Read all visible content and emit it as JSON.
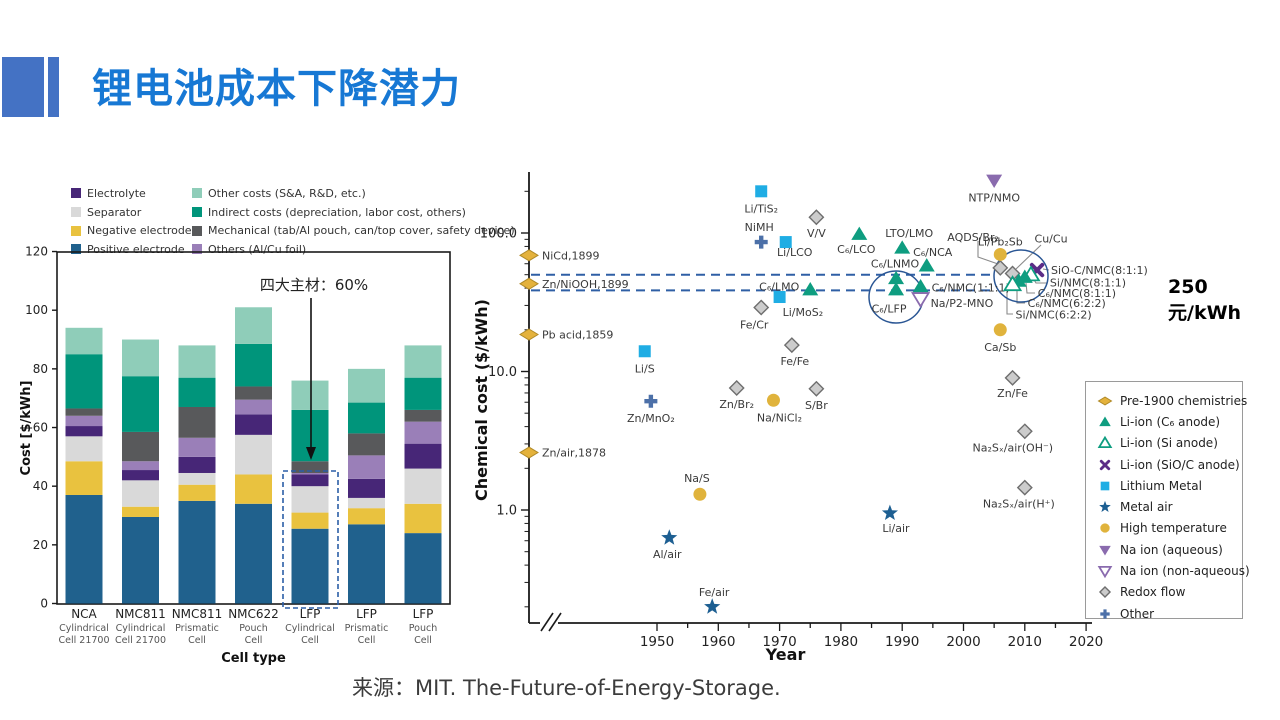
{
  "slide": {
    "title": "锂电池成本下降潜力",
    "source": "来源：MIT. The-Future-of-Energy-Storage.",
    "cost_target_annotation": "250元/kWh",
    "accent_color": "#4472C4",
    "title_color": "#1778D4"
  },
  "chart_data": [
    {
      "type": "bar",
      "stacked": true,
      "title": "",
      "xlabel": "Cell type",
      "ylabel": "Cost [$/kWh]",
      "ylim": [
        0,
        120
      ],
      "yticks": [
        0,
        20,
        40,
        60,
        80,
        100,
        120
      ],
      "categories": [
        {
          "name": "NCA",
          "sub": [
            "Cylindrical",
            "Cell 21700"
          ]
        },
        {
          "name": "NMC811",
          "sub": [
            "Cylindrical",
            "Cell 21700"
          ]
        },
        {
          "name": "NMC811",
          "sub": [
            "Prismatic",
            "Cell"
          ]
        },
        {
          "name": "NMC622",
          "sub": [
            "Pouch",
            "Cell"
          ]
        },
        {
          "name": "LFP",
          "sub": [
            "Cylindrical",
            "Cell"
          ]
        },
        {
          "name": "LFP",
          "sub": [
            "Prismatic",
            "Cell"
          ]
        },
        {
          "name": "LFP",
          "sub": [
            "Pouch",
            "Cell"
          ]
        }
      ],
      "series": [
        {
          "name": "Positive electrode",
          "color": "#20618D",
          "values": [
            37,
            29.5,
            35,
            34,
            25.5,
            27,
            24
          ]
        },
        {
          "name": "Negative electrode",
          "color": "#E9C23F",
          "values": [
            11.5,
            3.5,
            5.5,
            10,
            5.5,
            5.5,
            10
          ]
        },
        {
          "name": "Separator",
          "color": "#D9D9D9",
          "values": [
            8.5,
            9,
            4,
            13.5,
            9,
            3.5,
            12
          ]
        },
        {
          "name": "Electrolyte",
          "color": "#472677",
          "values": [
            3.5,
            3.5,
            5.5,
            7,
            4,
            6.5,
            8.5
          ]
        },
        {
          "name": "Others (Al/Cu foil)",
          "color": "#9A7FB8",
          "values": [
            3.5,
            3,
            6.5,
            5,
            0.5,
            8,
            7.5
          ]
        },
        {
          "name": "Mechanical (tab/Al pouch, can/top cover, safety device)",
          "color": "#58595B",
          "values": [
            2.5,
            10,
            10.5,
            4.5,
            4,
            7.5,
            4
          ]
        },
        {
          "name": "Indirect costs (depreciation, labor cost, others)",
          "color": "#00957B",
          "values": [
            18.5,
            19,
            10,
            14.5,
            17.5,
            10.5,
            11
          ]
        },
        {
          "name": "Other costs (S&A, R&D, etc.)",
          "color": "#8FCDB9",
          "values": [
            9,
            12.5,
            11,
            12.5,
            10,
            11.5,
            11
          ]
        }
      ],
      "legend_left": [
        {
          "label": "Electrolyte",
          "color": "#472677"
        },
        {
          "label": "Separator",
          "color": "#D9D9D9"
        },
        {
          "label": "Negative electrode",
          "color": "#E9C23F"
        },
        {
          "label": "Positive electrode",
          "color": "#20618D"
        }
      ],
      "legend_right": [
        {
          "label": "Other costs (S&A, R&D, etc.)",
          "color": "#8FCDB9"
        },
        {
          "label": "Indirect costs (depreciation, labor cost, others)",
          "color": "#00957B"
        },
        {
          "label": "Mechanical (tab/Al pouch, can/top cover, safety device)",
          "color": "#58595B"
        },
        {
          "label": "Others (Al/Cu foil)",
          "color": "#9A7FB8"
        }
      ],
      "annotation": {
        "text": "四大主材：60%",
        "target_category_index": 4
      }
    },
    {
      "type": "scatter",
      "xlabel": "Year",
      "ylabel": "Chemical cost ($/kWh)",
      "x_scale": "linear",
      "y_scale": "log",
      "xlim": [
        1945,
        2022
      ],
      "xticks": [
        1950,
        1960,
        1970,
        1980,
        1990,
        2000,
        2010,
        2020
      ],
      "yticks": [
        {
          "value": 100,
          "label": "100.0"
        },
        {
          "value": 10,
          "label": "10.0"
        },
        {
          "value": 1,
          "label": "1.0"
        }
      ],
      "dashed_band_costs": [
        50,
        38.5
      ],
      "marker_colors": {
        "pre1900": "#E4B23C",
        "pre1900_stroke": "#B08A28",
        "li_c6": "#0E9D80",
        "li_sioc": "#5B2C87",
        "li_metal": "#1FADE4",
        "metal_air": "#1D5F92",
        "high_temp": "#E0B33C",
        "na_aq": "#8A6BAE",
        "redox_fill": "#CCCCCC",
        "redox_stroke": "#6E6E6E",
        "other": "#4C70A8",
        "annotation_circle": "#2A5694",
        "dashed_line": "#2F5FA5"
      },
      "legend": [
        {
          "label": "Pre-1900 chemistries",
          "type": "pre1900"
        },
        {
          "label": "Li-ion (C₆ anode)",
          "type": "li_c6"
        },
        {
          "label": "Li-ion (Si anode)",
          "type": "li_si"
        },
        {
          "label": "Li-ion (SiO/C anode)",
          "type": "li_sioc"
        },
        {
          "label": "Lithium Metal",
          "type": "li_metal"
        },
        {
          "label": "Metal air",
          "type": "metal_air"
        },
        {
          "label": "High temperature",
          "type": "high_temp"
        },
        {
          "label": "Na ion (aqueous)",
          "type": "na_aq"
        },
        {
          "label": "Na ion (non-aqueous)",
          "type": "na_nonaq"
        },
        {
          "label": "Redox flow",
          "type": "redox"
        },
        {
          "label": "Other",
          "type": "other"
        }
      ],
      "points": [
        {
          "label": "NiCd,1899",
          "year": null,
          "on_axis": true,
          "cost": 69,
          "type": "pre1900"
        },
        {
          "label": "Zn/NiOOH,1899",
          "year": null,
          "on_axis": true,
          "cost": 43,
          "type": "pre1900"
        },
        {
          "label": "Pb acid,1859",
          "year": null,
          "on_axis": true,
          "cost": 18.5,
          "type": "pre1900"
        },
        {
          "label": "Zn/air,1878",
          "year": null,
          "on_axis": true,
          "cost": 2.6,
          "type": "pre1900"
        },
        {
          "label": "Li/TiS₂",
          "year": 1967,
          "cost": 200,
          "type": "li_metal"
        },
        {
          "label": "V/V",
          "year": 1976,
          "cost": 130,
          "type": "redox"
        },
        {
          "label": "NiMH",
          "year": 1967,
          "cost": 86,
          "type": "other"
        },
        {
          "label": "Li/LCO",
          "year": 1971,
          "cost": 86,
          "type": "li_metal"
        },
        {
          "label": "C₆/LCO",
          "year": 1983,
          "cost": 98,
          "type": "li_c6"
        },
        {
          "label": "LTO/LMO",
          "year": 1990,
          "cost": 78,
          "type": "li_c6"
        },
        {
          "label": "C₆/NCA",
          "year": 1994,
          "cost": 58,
          "type": "li_c6"
        },
        {
          "label": "C₆/LNMO",
          "year": 1989,
          "cost": 47,
          "type": "li_c6"
        },
        {
          "label": "C₆/LMO",
          "year": 1975,
          "cost": 39,
          "type": "li_c6"
        },
        {
          "label": "C₆/LFP",
          "year": 1989,
          "cost": 39,
          "type": "li_c6",
          "circled": true
        },
        {
          "label": "C₆/NMC(1:1:1)",
          "year": 1993,
          "cost": 41,
          "type": "li_c6"
        },
        {
          "label": "Na/P2-MNO",
          "year": 1993,
          "cost": 33.5,
          "type": "na_nonaq"
        },
        {
          "label": "Li/MoS₂",
          "year": 1970,
          "cost": 34.5,
          "type": "li_metal"
        },
        {
          "label": "Fe/Cr",
          "year": 1967,
          "cost": 29,
          "type": "redox"
        },
        {
          "label": "AQDS/Br₂",
          "year": 2006,
          "cost": 56,
          "type": "redox"
        },
        {
          "label": "Li/Pb₂Sb",
          "year": 2006,
          "cost": 70,
          "type": "high_temp"
        },
        {
          "label": "Cu/Cu",
          "year": 2008,
          "cost": 51,
          "type": "redox"
        },
        {
          "label": "SiO-C/NMC(8:1:1)",
          "year": 2012,
          "cost": 54,
          "type": "li_sioc",
          "circled": true
        },
        {
          "label": "Si/NMC(8:1:1)",
          "year": 2011,
          "cost": 50,
          "type": "li_si",
          "circled": true
        },
        {
          "label": "C₆/NMC(8:1:1)",
          "year": 2010,
          "cost": 48,
          "type": "li_c6",
          "circled": true
        },
        {
          "label": "C₆/NMC(6:2:2)",
          "year": 2009,
          "cost": 45,
          "type": "li_c6",
          "circled": true
        },
        {
          "label": "Si/NMC(6:2:2)",
          "year": 2008,
          "cost": 42.5,
          "type": "li_si",
          "circled": true
        },
        {
          "label": "Ca/Sb",
          "year": 2006,
          "cost": 20,
          "type": "high_temp"
        },
        {
          "label": "NTP/NMO",
          "year": 2005,
          "cost": 240,
          "type": "na_aq"
        },
        {
          "label": "Fe/Fe",
          "year": 1972,
          "cost": 15.5,
          "type": "redox"
        },
        {
          "label": "Li/S",
          "year": 1948,
          "cost": 14,
          "type": "li_metal"
        },
        {
          "label": "Zn/MnO₂",
          "year": 1949,
          "cost": 6.1,
          "type": "other"
        },
        {
          "label": "Zn/Br₂",
          "year": 1963,
          "cost": 7.6,
          "type": "redox"
        },
        {
          "label": "Na/NiCl₂",
          "year": 1969,
          "cost": 6.2,
          "type": "high_temp"
        },
        {
          "label": "S/Br",
          "year": 1976,
          "cost": 7.5,
          "type": "redox"
        },
        {
          "label": "Na/S",
          "year": 1957,
          "cost": 1.3,
          "type": "high_temp"
        },
        {
          "label": "Al/air",
          "year": 1952,
          "cost": 0.63,
          "type": "metal_air"
        },
        {
          "label": "Li/air",
          "year": 1988,
          "cost": 0.95,
          "type": "metal_air"
        },
        {
          "label": "Fe/air",
          "year": 1959,
          "cost": 0.2,
          "type": "metal_air"
        },
        {
          "label": "Zn/Fe",
          "year": 2008,
          "cost": 9,
          "type": "redox"
        },
        {
          "label": "Na₂Sₓ/air(OH⁻)",
          "year": 2010,
          "cost": 3.7,
          "type": "redox"
        },
        {
          "label": "Na₂Sₓ/air(H⁺)",
          "year": 2010,
          "cost": 1.45,
          "type": "redox"
        }
      ]
    }
  ]
}
